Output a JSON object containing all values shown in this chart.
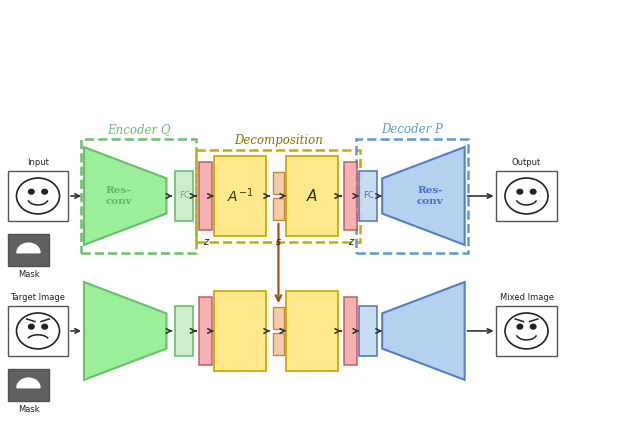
{
  "fig_width": 6.4,
  "fig_height": 4.29,
  "dpi": 100,
  "bg_color": "#ffffff",
  "title_encoder": "Encoder Q",
  "title_decoder": "Decoder P",
  "title_decomp": "Decomposition",
  "colors": {
    "green_fill": "#90EE90",
    "green_edge": "#5DBB5D",
    "green_dashed": "#6BBF6B",
    "blue_fill": "#AECBEE",
    "blue_edge": "#4472C4",
    "blue_dashed": "#5B9BD5",
    "red_fill": "#F4AAAA",
    "red_edge": "#C0504D",
    "yellow_fill": "#FFE680",
    "yellow_edge": "#CCA800",
    "orange_fill": "#F5C8A0",
    "orange_edge": "#C87830",
    "light_green_fill": "#C8ECC8",
    "light_blue_fill": "#C5D9F1",
    "arrow_color": "#333333",
    "brown_arrow": "#A05020",
    "text_color": "#222222"
  }
}
